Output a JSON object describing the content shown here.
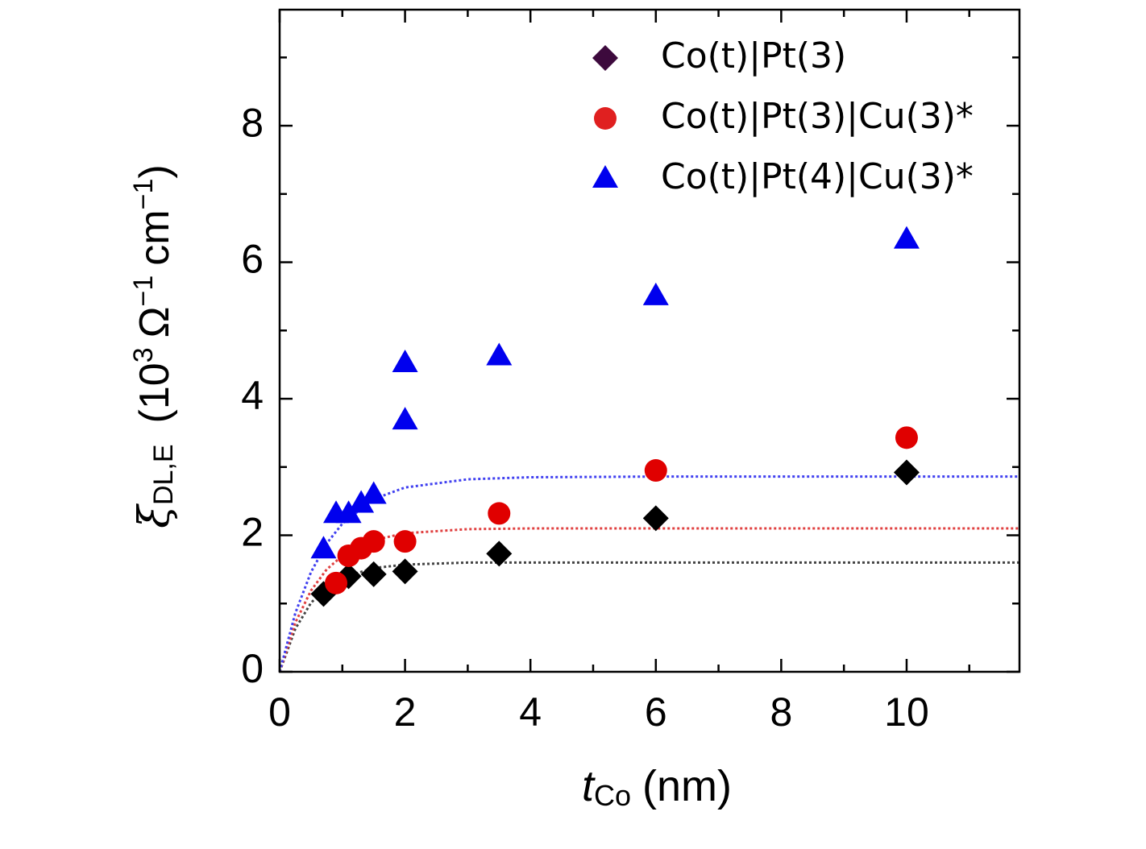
{
  "chart_data": {
    "type": "scatter",
    "xlabel_parts": [
      "t",
      "Co",
      "(nm)"
    ],
    "ylabel_parts": [
      "ξ",
      "DL,E",
      "(10",
      "3",
      "Ω",
      "−1",
      "cm",
      "−1",
      ")"
    ],
    "xlim": [
      0,
      11.8
    ],
    "ylim": [
      0,
      9.7
    ],
    "xticks": [
      0,
      2,
      4,
      6,
      8,
      10
    ],
    "yticks": [
      0,
      2,
      4,
      6,
      8
    ],
    "xminor": [
      1,
      3,
      5,
      7,
      9,
      11
    ],
    "yminor": [
      1,
      3,
      5,
      7,
      9
    ],
    "series": [
      {
        "name": "Co(t)|Pt(3)",
        "color": "#000000",
        "legend_color": "#3d0a3d",
        "marker": "diamond",
        "x": [
          0.7,
          1.1,
          1.5,
          2,
          3.5,
          6,
          10
        ],
        "values": [
          1.14,
          1.4,
          1.43,
          1.47,
          1.73,
          2.25,
          2.92
        ]
      },
      {
        "name": "Co(t)|Pt(3)|Cu(3)*",
        "color": "#e00000",
        "legend_color": "#e02020",
        "marker": "circle",
        "x": [
          0.9,
          1.1,
          1.3,
          1.5,
          2,
          3.5,
          6,
          10
        ],
        "values": [
          1.3,
          1.7,
          1.81,
          1.91,
          1.91,
          2.32,
          2.95,
          3.43
        ]
      },
      {
        "name": "Co(t)|Pt(4)|Cu(3)*",
        "color": "#0000ee",
        "legend_color": "#0000ee",
        "marker": "triangle",
        "x": [
          0.7,
          0.9,
          1.1,
          1.3,
          1.5,
          2,
          2,
          3.5,
          6,
          10
        ],
        "values": [
          1.79,
          2.31,
          2.31,
          2.46,
          2.59,
          3.68,
          4.52,
          4.62,
          5.5,
          6.33
        ]
      }
    ],
    "fits": [
      {
        "color": "#444444",
        "x": [
          0,
          0.25,
          0.5,
          0.75,
          1,
          1.5,
          2,
          3,
          4,
          6,
          8,
          10,
          11.8
        ],
        "values": [
          0,
          0.63,
          1.01,
          1.24,
          1.38,
          1.52,
          1.57,
          1.6,
          1.6,
          1.6,
          1.6,
          1.6,
          1.6
        ]
      },
      {
        "color": "#e04040",
        "x": [
          0,
          0.25,
          0.5,
          0.75,
          1,
          1.5,
          2,
          3,
          4,
          6,
          8,
          10,
          11.8
        ],
        "values": [
          0,
          0.72,
          1.19,
          1.5,
          1.7,
          1.93,
          2.03,
          2.09,
          2.1,
          2.1,
          2.1,
          2.1,
          2.1
        ]
      },
      {
        "color": "#4040f0",
        "x": [
          0,
          0.25,
          0.5,
          0.75,
          1,
          1.5,
          2,
          3,
          4,
          6,
          8,
          10,
          11.8
        ],
        "values": [
          0,
          0.86,
          1.46,
          1.88,
          2.17,
          2.53,
          2.7,
          2.82,
          2.85,
          2.86,
          2.86,
          2.86,
          2.86
        ]
      }
    ]
  }
}
